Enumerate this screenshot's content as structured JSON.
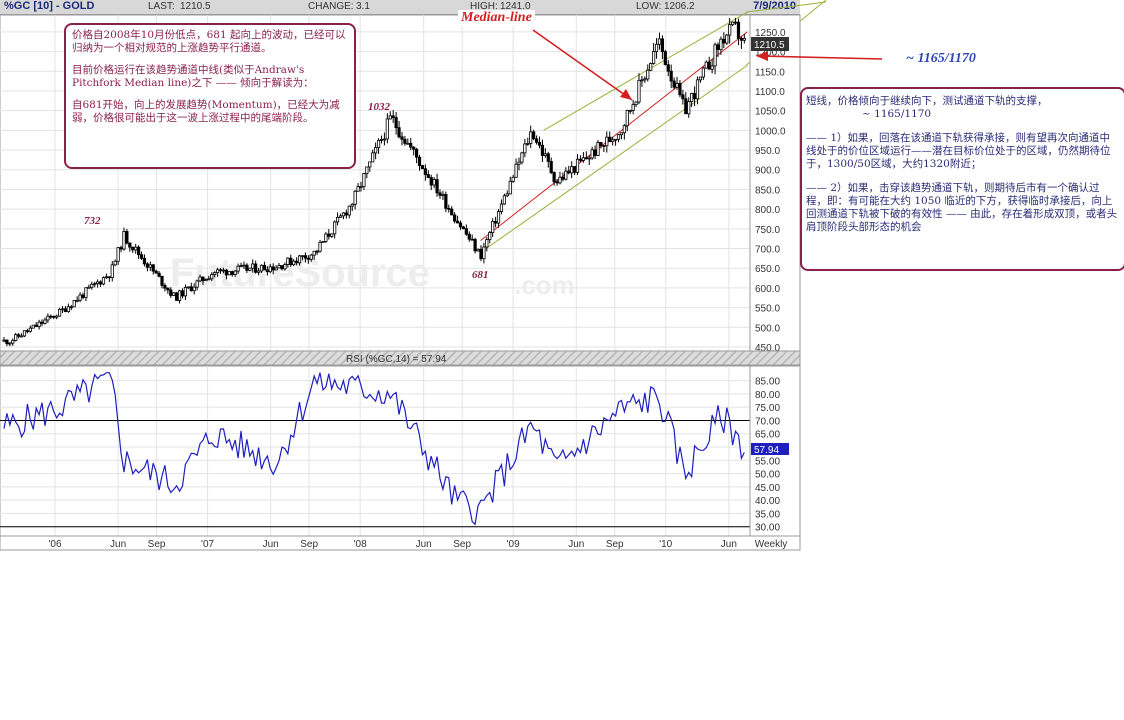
{
  "header": {
    "symbol": "%GC [10] - GOLD",
    "last_label": "LAST:",
    "last_value": "1210.5",
    "change_label": "CHANGE:",
    "change_value": "3.1",
    "high_label": "HIGH:",
    "high_value": "1241.0",
    "low_label": "LOW:",
    "low_value": "1206.2",
    "date": "7/9/2010"
  },
  "annotations": {
    "median_line": "Median-line",
    "target_price": "~ 1165/1170",
    "peak_732": "732",
    "peak_1032": "1032",
    "trough_681": "681",
    "watermark": "FutureSource",
    "watermark_com": ".com",
    "price_tag": "1210.5",
    "rsi_tag": "57.94"
  },
  "note_left": {
    "p1": "价格自2008年10月份低点，681 起向上的波动，已经可以归纳为一个相对规范的上涨趋势平行通道。",
    "p2": "目前价格运行在该趋势通道中线(类似于Andraw's Pitchfork Median line)之下 —— 倾向于解读为：",
    "p3": "自681开始，向上的发展趋势(Momentum)，已经大为减弱，价格很可能出于这一波上涨过程中的尾端阶段。"
  },
  "note_right": {
    "p1": "短线，价格倾向于继续向下，测试通道下轨的支撑，",
    "p1b": "~ 1165/1170",
    "p2": "—— 1）如果，回落在该通道下轨获得承接，则有望再次向通道中线处于的价位区域运行——潜在目标价位处于的区域，仍然期待位于，1300/50区域，大约1320附近；",
    "p3": "—— 2）如果，击穿该趋势通道下轨，则期待后市有一个确认过程，即：有可能在大约 1050 临近的下方，获得临时承接后，向上回测通道下轨被下破的有效性 —— 由此，存在着形成双顶，或者头肩顶阶段头部形态的机会"
  },
  "colors": {
    "candle": "#000000",
    "rsi_line": "#1f1fbf",
    "channel": "#9ab03c",
    "median": "#d42020",
    "annotation": "#8a2149",
    "target": "#2f46b8"
  },
  "chart_data": [
    {
      "type": "candlestick",
      "title": "%GC [10] - GOLD",
      "period": "Weekly",
      "ylim": [
        450,
        1270
      ],
      "yticks": [
        450,
        500,
        550,
        600,
        650,
        700,
        750,
        800,
        850,
        900,
        950,
        1000,
        1050,
        1100,
        1150,
        1200,
        1250
      ],
      "x_ticks": [
        "'06",
        "Jun",
        "Sep",
        "'07",
        "Jun",
        "Sep",
        "'08",
        "Jun",
        "Sep",
        "'09",
        "Jun",
        "Sep",
        "'10",
        "Jun",
        "Weekly"
      ],
      "x": [
        "2005-09",
        "2006-01",
        "2006-05",
        "2006-06",
        "2006-10",
        "2007-01",
        "2007-06",
        "2007-09",
        "2007-12",
        "2008-03",
        "2008-08",
        "2008-10",
        "2009-02",
        "2009-04",
        "2009-09",
        "2009-12",
        "2010-02",
        "2010-05",
        "2010-06",
        "2010-07"
      ],
      "series": [
        {
          "values": [
            465,
            540,
            640,
            732,
            575,
            640,
            655,
            690,
            820,
            1032,
            780,
            681,
            1000,
            870,
            1000,
            1225,
            1050,
            1230,
            1260,
            1210
          ]
        }
      ],
      "channel": {
        "upper": [
          {
            "x": "2009-03",
            "y": 1000
          },
          {
            "x": "2010-07",
            "y": 1300
          }
        ],
        "median": [
          {
            "x": "2008-10",
            "y": 720
          },
          {
            "x": "2010-07",
            "y": 1250
          }
        ],
        "lower": [
          {
            "x": "2008-10",
            "y": 690
          },
          {
            "x": "2010-07",
            "y": 1165
          }
        ]
      }
    },
    {
      "type": "line",
      "title": "RSI (%GC,14) = 57.94",
      "ylim": [
        28,
        89
      ],
      "yticks": [
        30,
        35,
        40,
        45,
        50,
        55,
        60,
        65,
        70,
        75,
        80,
        85
      ],
      "reference_lines": [
        70,
        30
      ],
      "x": [
        "2005-09",
        "2006-01",
        "2006-05",
        "2006-06",
        "2006-10",
        "2007-01",
        "2007-06",
        "2007-09",
        "2008-03",
        "2008-08",
        "2008-10",
        "2009-02",
        "2009-04",
        "2009-09",
        "2009-12",
        "2010-02",
        "2010-05",
        "2010-07"
      ],
      "series": [
        {
          "name": "RSI (%GC,14)",
          "values": [
            68,
            75,
            86,
            55,
            46,
            65,
            54,
            85,
            80,
            40,
            36,
            68,
            52,
            74,
            79,
            50,
            72,
            57.94
          ]
        }
      ]
    }
  ]
}
